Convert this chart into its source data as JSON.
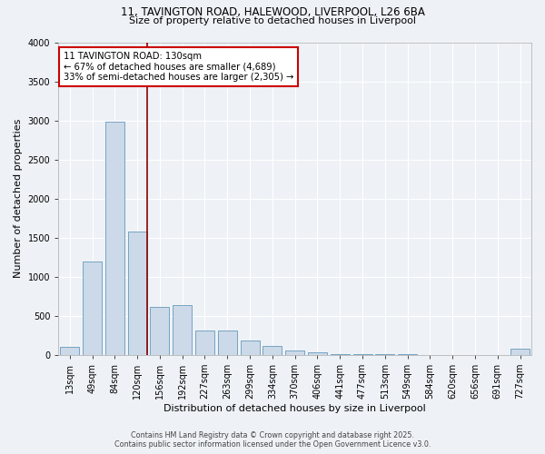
{
  "title_line1": "11, TAVINGTON ROAD, HALEWOOD, LIVERPOOL, L26 6BA",
  "title_line2": "Size of property relative to detached houses in Liverpool",
  "xlabel": "Distribution of detached houses by size in Liverpool",
  "ylabel": "Number of detached properties",
  "categories": [
    "13sqm",
    "49sqm",
    "84sqm",
    "120sqm",
    "156sqm",
    "192sqm",
    "227sqm",
    "263sqm",
    "299sqm",
    "334sqm",
    "370sqm",
    "406sqm",
    "441sqm",
    "477sqm",
    "513sqm",
    "549sqm",
    "584sqm",
    "620sqm",
    "656sqm",
    "691sqm",
    "727sqm"
  ],
  "values": [
    100,
    1200,
    2980,
    1580,
    620,
    640,
    310,
    310,
    190,
    110,
    60,
    30,
    10,
    10,
    5,
    5,
    3,
    2,
    2,
    0,
    80
  ],
  "bar_color": "#ccd9e8",
  "bar_edge_color": "#6699bb",
  "vline_index": 3,
  "annotation_text": "11 TAVINGTON ROAD: 130sqm\n← 67% of detached houses are smaller (4,689)\n33% of semi-detached houses are larger (2,305) →",
  "annotation_box_facecolor": "#ffffff",
  "annotation_box_edgecolor": "#cc0000",
  "vline_color": "#880000",
  "ylim": [
    0,
    4000
  ],
  "yticks": [
    0,
    500,
    1000,
    1500,
    2000,
    2500,
    3000,
    3500,
    4000
  ],
  "footer_line1": "Contains HM Land Registry data © Crown copyright and database right 2025.",
  "footer_line2": "Contains public sector information licensed under the Open Government Licence v3.0.",
  "background_color": "#eef2f7",
  "plot_bg_color": "#eef2f7",
  "grid_color": "#ffffff",
  "title_fontsize": 8.5,
  "axis_label_fontsize": 8,
  "tick_fontsize": 7
}
